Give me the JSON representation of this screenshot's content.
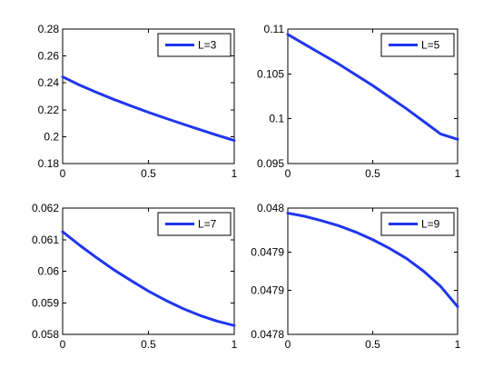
{
  "chart_data": [
    {
      "type": "line",
      "xlim": [
        0,
        1
      ],
      "ylim": [
        0.18,
        0.28
      ],
      "x_ticks": [
        0,
        0.5,
        1
      ],
      "x_tick_labels": [
        "0",
        "0.5",
        "1"
      ],
      "y_ticks": [
        0.18,
        0.2,
        0.22,
        0.24,
        0.26,
        0.28
      ],
      "y_tick_labels": [
        "0.18",
        "0.2",
        "0.22",
        "0.24",
        "0.26",
        "0.28"
      ],
      "legend_position": "top-right",
      "series": [
        {
          "name": "L=3",
          "color": "#2036ee",
          "x": [
            0,
            0.1,
            0.2,
            0.3,
            0.4,
            0.5,
            0.6,
            0.7,
            0.8,
            0.9,
            1
          ],
          "y": [
            0.2445,
            0.2383,
            0.2328,
            0.2276,
            0.2228,
            0.2181,
            0.2137,
            0.2094,
            0.2052,
            0.2011,
            0.1972
          ]
        }
      ]
    },
    {
      "type": "line",
      "xlim": [
        0,
        1
      ],
      "ylim": [
        0.095,
        0.11
      ],
      "x_ticks": [
        0,
        0.5,
        1
      ],
      "x_tick_labels": [
        "0",
        "0.5",
        "1"
      ],
      "y_ticks": [
        0.095,
        0.1,
        0.105,
        0.11
      ],
      "y_tick_labels": [
        "0.095",
        "0.1",
        "0.105",
        "0.11"
      ],
      "legend_position": "top-right",
      "series": [
        {
          "name": "L=5",
          "color": "#2036ee",
          "x": [
            0,
            0.1,
            0.2,
            0.3,
            0.4,
            0.5,
            0.6,
            0.7,
            0.8,
            0.9,
            1
          ],
          "y": [
            0.1094,
            0.1083,
            0.1072,
            0.1061,
            0.1049,
            0.1037,
            0.1024,
            0.1011,
            0.0997,
            0.0983,
            0.0977
          ]
        }
      ]
    },
    {
      "type": "line",
      "xlim": [
        0,
        1
      ],
      "ylim": [
        0.058,
        0.062
      ],
      "x_ticks": [
        0,
        0.5,
        1
      ],
      "x_tick_labels": [
        "0",
        "0.5",
        "1"
      ],
      "y_ticks": [
        0.058,
        0.059,
        0.06,
        0.061,
        0.062
      ],
      "y_tick_labels": [
        "0.058",
        "0.059",
        "0.06",
        "0.061",
        "0.062"
      ],
      "legend_position": "top-right",
      "series": [
        {
          "name": "L=7",
          "color": "#2036ee",
          "x": [
            0,
            0.1,
            0.2,
            0.3,
            0.4,
            0.5,
            0.6,
            0.7,
            0.8,
            0.9,
            1
          ],
          "y": [
            0.06125,
            0.06082,
            0.06042,
            0.06004,
            0.0597,
            0.05937,
            0.05908,
            0.05882,
            0.0586,
            0.05842,
            0.05828
          ]
        }
      ]
    },
    {
      "type": "line",
      "xlim": [
        0,
        1
      ],
      "ylim": [
        0.04779,
        0.04799
      ],
      "x_ticks": [
        0,
        0.5,
        1
      ],
      "x_tick_labels": [
        "0",
        "0.5",
        "1"
      ],
      "y_ticks": [
        0.04779,
        0.04786,
        0.04792,
        0.04799
      ],
      "y_tick_labels": [
        "0.0478",
        "0.0479",
        "0.0479",
        "0.048"
      ],
      "legend_position": "top-right",
      "series": [
        {
          "name": "L=9",
          "color": "#2036ee",
          "x": [
            0,
            0.1,
            0.2,
            0.3,
            0.4,
            0.5,
            0.6,
            0.7,
            0.8,
            0.9,
            1
          ],
          "y": [
            0.047982,
            0.047977,
            0.04797,
            0.047962,
            0.047952,
            0.04794,
            0.047926,
            0.04791,
            0.04789,
            0.047866,
            0.047834
          ]
        }
      ]
    }
  ]
}
